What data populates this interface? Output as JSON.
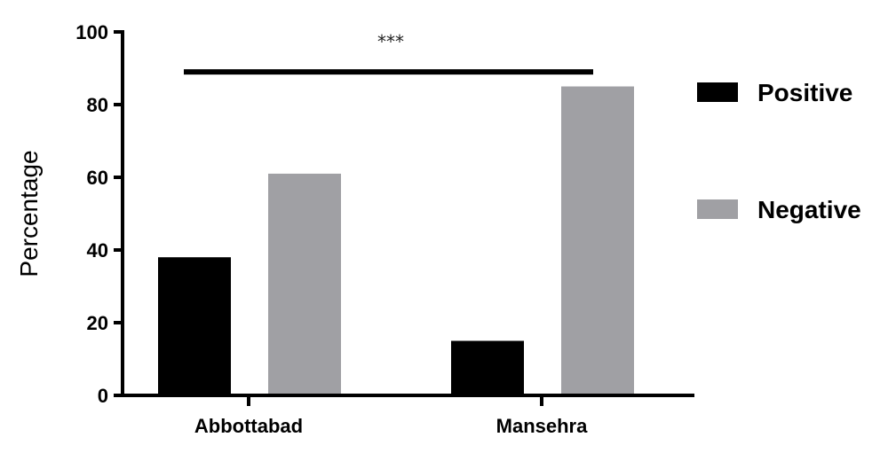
{
  "chart_data": {
    "type": "bar",
    "title": "",
    "xlabel": "",
    "ylabel": "Percentage",
    "ylim": [
      0,
      100
    ],
    "yticks": [
      "0",
      "20",
      "40",
      "60",
      "80",
      "100"
    ],
    "categories": [
      "Abbottabad",
      "Mansehra"
    ],
    "series": [
      {
        "name": "Positive",
        "color": "#000000",
        "values": [
          38,
          15
        ]
      },
      {
        "name": "Negative",
        "color": "#a0a0a4",
        "values": [
          61,
          85
        ]
      }
    ],
    "annotation": {
      "text": "***",
      "y": 89
    },
    "legend_position": "right",
    "grid": false
  }
}
